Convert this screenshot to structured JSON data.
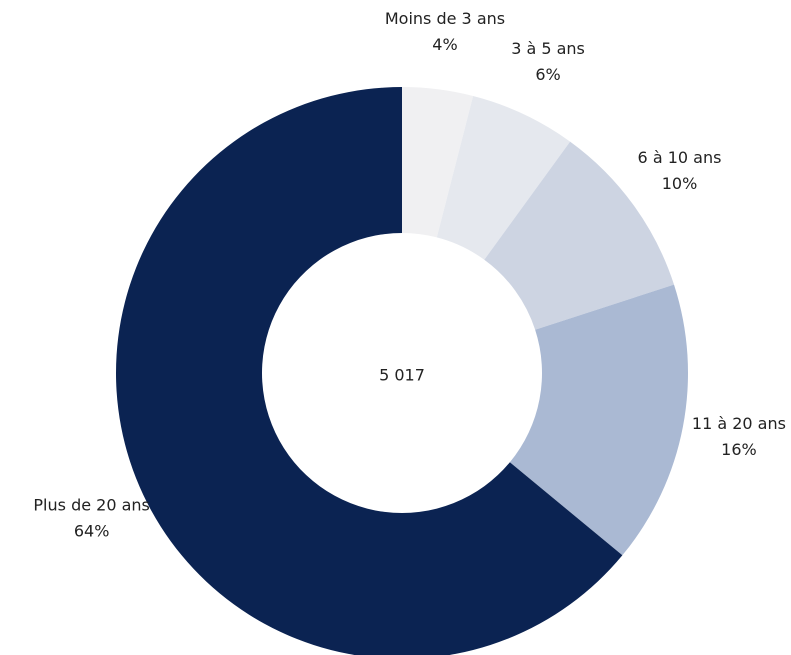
{
  "chart_data": {
    "type": "donut",
    "categories": [
      "Moins de 3 ans",
      "3 à 5 ans",
      "6 à 10 ans",
      "11 à 20 ans",
      "Plus de 20 ans"
    ],
    "values": [
      4,
      6,
      10,
      16,
      64
    ],
    "value_labels": [
      "4%",
      "6%",
      "10%",
      "16%",
      "64%"
    ],
    "colors": [
      "#f0f0f2",
      "#e5e8ee",
      "#cdd4e2",
      "#aab9d3",
      "#0b2352"
    ],
    "total": {
      "value": 5017,
      "label": "5 017"
    }
  }
}
